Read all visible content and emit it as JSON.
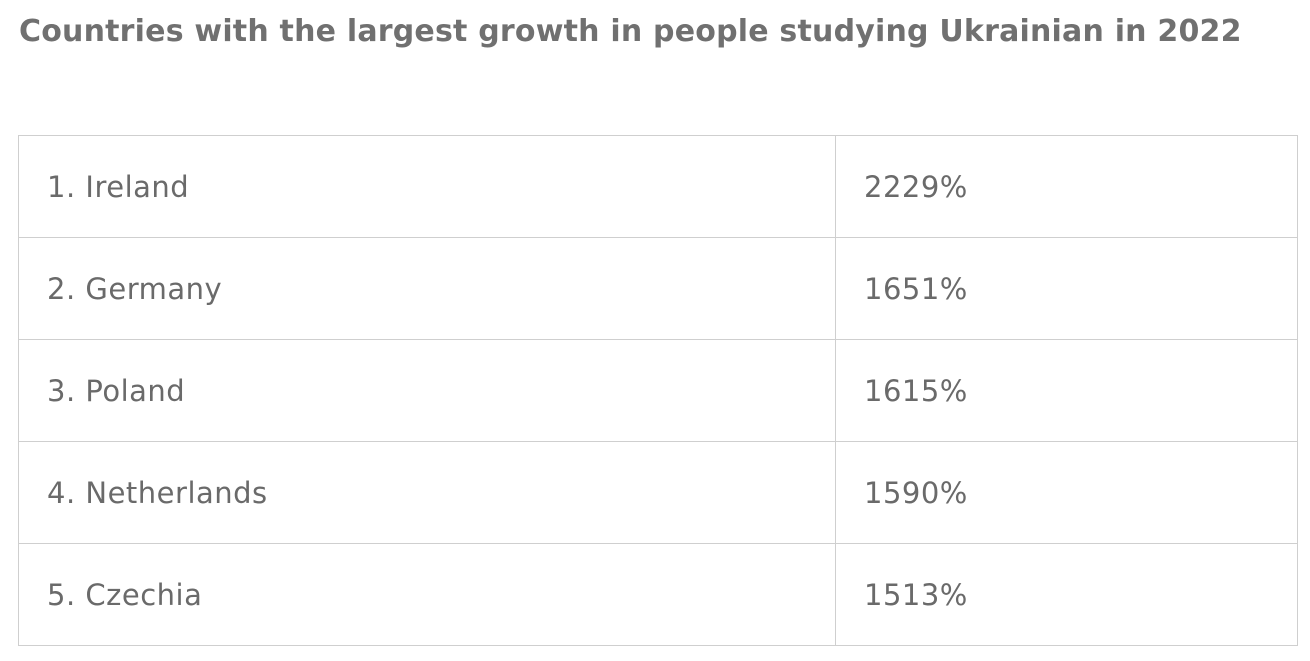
{
  "title": "Countries with the largest growth in people studying Ukrainian in 2022",
  "table": {
    "rows": [
      [
        "1. Ireland",
        "2229%"
      ],
      [
        "2. Germany",
        "1651%"
      ],
      [
        "3. Poland",
        "1615%"
      ],
      [
        "4. Netherlands",
        "1590%"
      ],
      [
        "5. Czechia",
        "1513%"
      ]
    ]
  }
}
